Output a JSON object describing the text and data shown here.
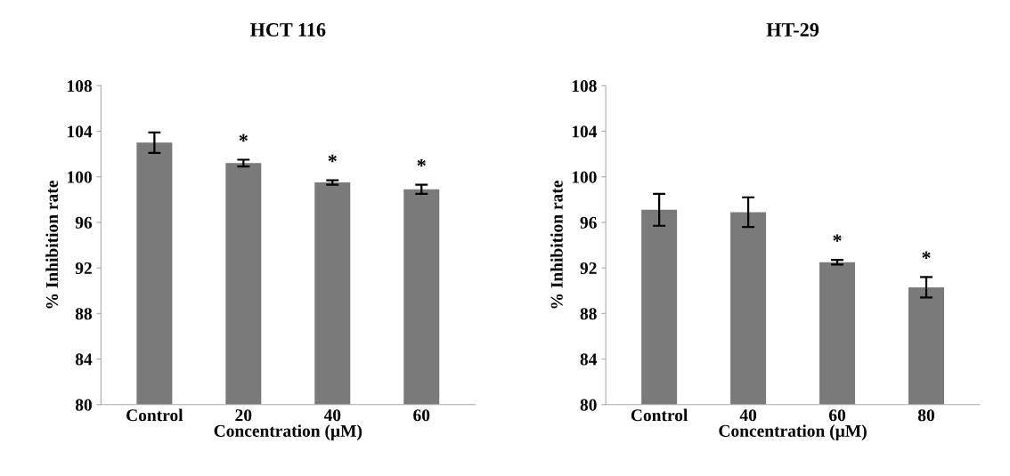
{
  "chart_data": [
    {
      "type": "bar",
      "title": "HCT 116",
      "xlabel": "Concentration (µM)",
      "ylabel": "% Inhibition rate",
      "categories": [
        "Control",
        "20",
        "40",
        "60"
      ],
      "values": [
        103.0,
        101.2,
        99.5,
        98.9
      ],
      "errors": [
        0.9,
        0.3,
        0.2,
        0.4
      ],
      "color": "#7a7a7a",
      "ylim": [
        80,
        108
      ],
      "yticks": [
        80,
        84,
        88,
        92,
        96,
        100,
        104,
        108
      ],
      "grid": false,
      "legend": false,
      "annotations": [
        {
          "text": "*",
          "x": "20",
          "y": 101.2
        },
        {
          "text": "*",
          "x": "40",
          "y": 99.5
        },
        {
          "text": "*",
          "x": "60",
          "y": 98.9
        }
      ]
    },
    {
      "type": "bar",
      "title": "HT-29",
      "xlabel": "Concentration (µM)",
      "ylabel": "% Inhibition rate",
      "categories": [
        "Control",
        "40",
        "60",
        "80"
      ],
      "values": [
        97.1,
        96.9,
        92.5,
        90.3
      ],
      "errors": [
        1.4,
        1.3,
        0.2,
        0.9
      ],
      "color": "#7a7a7a",
      "ylim": [
        80,
        108
      ],
      "yticks": [
        80,
        84,
        88,
        92,
        96,
        100,
        104,
        108
      ],
      "grid": false,
      "legend": false,
      "annotations": [
        {
          "text": "*",
          "x": "60",
          "y": 92.5
        },
        {
          "text": "*",
          "x": "80",
          "y": 90.3
        }
      ]
    }
  ]
}
